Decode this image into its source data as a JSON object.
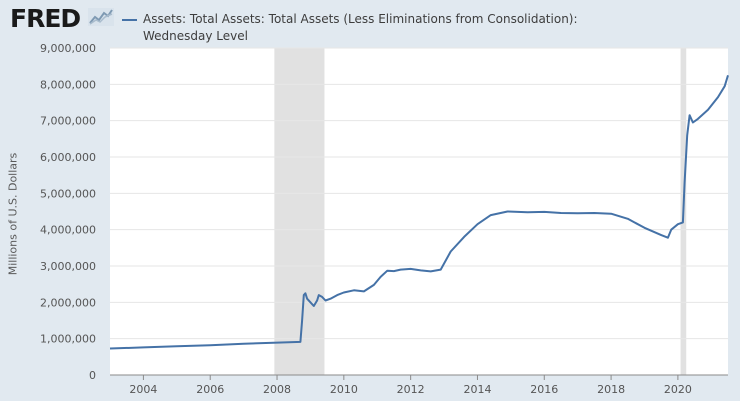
{
  "header": {
    "logo_text": "FRED",
    "logo_icon": "fred-chart-icon",
    "legend_label": "Assets: Total Assets: Total Assets (Less Eliminations from Consolidation): Wednesday Level"
  },
  "colors": {
    "series": "#4572a7",
    "recession": "#e1e1e1",
    "background": "#e1e9f0",
    "plot_background": "#ffffff",
    "grid": "#e6e6e6"
  },
  "chart_data": {
    "type": "line",
    "title": "",
    "xlabel": "",
    "ylabel": "Millions of U.S. Dollars",
    "xlim": [
      2003.0,
      2021.5
    ],
    "ylim": [
      0,
      9000000
    ],
    "x_ticks": [
      2004,
      2006,
      2008,
      2010,
      2012,
      2014,
      2016,
      2018,
      2020
    ],
    "y_ticks": [
      0,
      1000000,
      2000000,
      3000000,
      4000000,
      5000000,
      6000000,
      7000000,
      8000000,
      9000000
    ],
    "y_tick_labels": [
      "0",
      "1,000,000",
      "2,000,000",
      "3,000,000",
      "4,000,000",
      "5,000,000",
      "6,000,000",
      "7,000,000",
      "8,000,000",
      "9,000,000"
    ],
    "grid": true,
    "recessions": [
      [
        2007.92,
        2009.42
      ],
      [
        2020.08,
        2020.25
      ]
    ],
    "series": [
      {
        "name": "Assets: Total Assets: Total Assets (Less Eliminations from Consolidation): Wednesday Level",
        "x": [
          2003.0,
          2004.0,
          2005.0,
          2006.0,
          2007.0,
          2007.9,
          2008.7,
          2008.75,
          2008.8,
          2008.85,
          2008.9,
          2009.0,
          2009.1,
          2009.2,
          2009.25,
          2009.35,
          2009.45,
          2009.6,
          2009.8,
          2010.0,
          2010.3,
          2010.6,
          2010.9,
          2011.1,
          2011.3,
          2011.5,
          2011.7,
          2012.0,
          2012.3,
          2012.6,
          2012.9,
          2013.2,
          2013.6,
          2014.0,
          2014.4,
          2014.9,
          2015.5,
          2016.0,
          2016.5,
          2017.0,
          2017.5,
          2018.0,
          2018.5,
          2019.0,
          2019.5,
          2019.7,
          2019.8,
          2020.0,
          2020.15,
          2020.2,
          2020.28,
          2020.35,
          2020.45,
          2020.6,
          2020.9,
          2021.2,
          2021.4,
          2021.5
        ],
        "values": [
          730000,
          760000,
          790000,
          820000,
          860000,
          890000,
          910000,
          1500000,
          2200000,
          2250000,
          2100000,
          2000000,
          1900000,
          2050000,
          2200000,
          2150000,
          2050000,
          2100000,
          2200000,
          2270000,
          2330000,
          2300000,
          2480000,
          2700000,
          2870000,
          2860000,
          2900000,
          2920000,
          2880000,
          2850000,
          2900000,
          3400000,
          3800000,
          4150000,
          4400000,
          4500000,
          4480000,
          4490000,
          4460000,
          4450000,
          4460000,
          4440000,
          4300000,
          4050000,
          3850000,
          3780000,
          4000000,
          4150000,
          4200000,
          5300000,
          6600000,
          7150000,
          6950000,
          7050000,
          7300000,
          7650000,
          7950000,
          8250000
        ]
      }
    ]
  }
}
